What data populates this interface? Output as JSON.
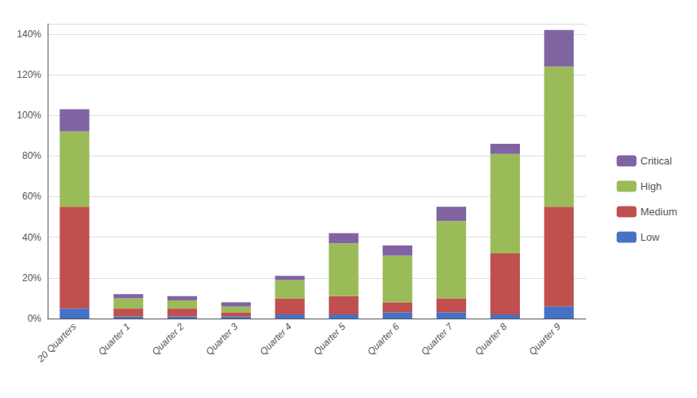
{
  "chart_data": {
    "type": "bar",
    "stacked": true,
    "categories": [
      "20 Quarters",
      "Quarter 1",
      "Quarter 2",
      "Quarter 3",
      "Quarter 4",
      "Quarter 5",
      "Quarter 6",
      "Quarter 7",
      "Quarter 8",
      "Quarter 9"
    ],
    "series": [
      {
        "name": "Low",
        "color": "#4472C4",
        "values": [
          5,
          1,
          1,
          1,
          2,
          2,
          3,
          3,
          2,
          6
        ]
      },
      {
        "name": "Medium",
        "color": "#C0504D",
        "values": [
          50,
          4,
          4,
          2,
          8,
          9,
          5,
          7,
          30,
          49
        ]
      },
      {
        "name": "High",
        "color": "#9BBB59",
        "values": [
          37,
          5,
          4,
          3,
          9,
          26,
          23,
          38,
          49,
          69
        ]
      },
      {
        "name": "Critical",
        "color": "#8064A2",
        "values": [
          11,
          2,
          2,
          2,
          2,
          5,
          5,
          7,
          5,
          18
        ]
      }
    ],
    "ylim": [
      0,
      145
    ],
    "yticks": [
      {
        "value": 0,
        "label": "0%"
      },
      {
        "value": 20,
        "label": "20%"
      },
      {
        "value": 40,
        "label": "40%"
      },
      {
        "value": 60,
        "label": "60%"
      },
      {
        "value": 80,
        "label": "80%"
      },
      {
        "value": 100,
        "label": "100%"
      },
      {
        "value": 120,
        "label": "120%"
      },
      {
        "value": 140,
        "label": "140%"
      }
    ],
    "grid": true,
    "legend": "right"
  }
}
